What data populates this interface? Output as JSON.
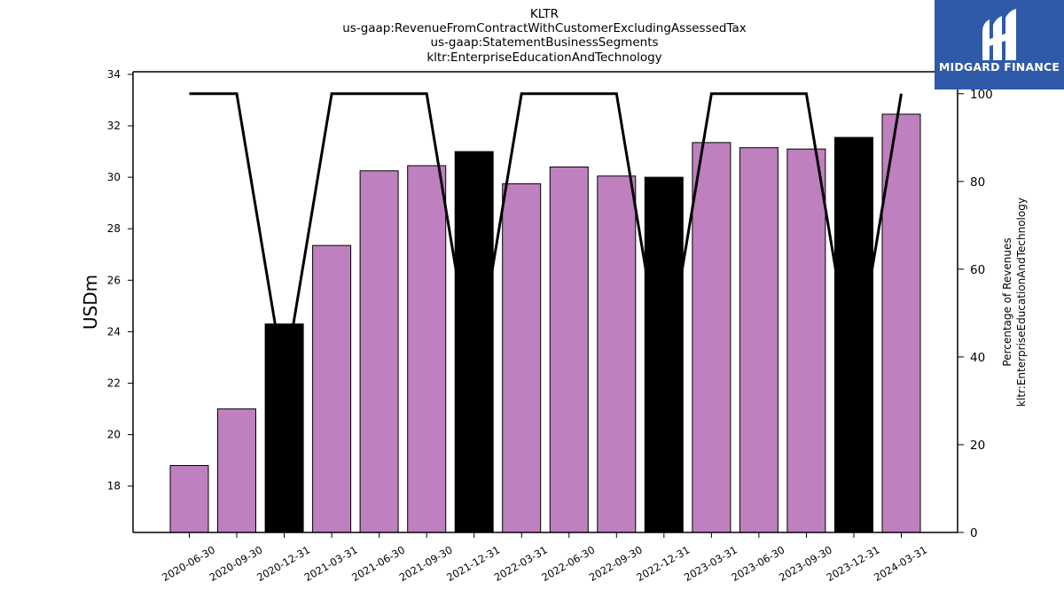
{
  "logo": {
    "text": "MIDGARD FINANCE",
    "background": "#2f5aa8",
    "icon": "midgard-m-icon"
  },
  "chart_data": {
    "type": "bar",
    "title_lines": [
      "KLTR",
      "us-gaap:RevenueFromContractWithCustomerExcludingAssessedTax",
      "us-gaap:StatementBusinessSegments",
      "kltr:EnterpriseEducationAndTechnology"
    ],
    "ylabel": "USDm",
    "y2label_lines": [
      "Percentage of Revenues",
      "kltr:EnterpriseEducationAndTechnology"
    ],
    "ylim": [
      16.2,
      34.1
    ],
    "y_ticks": [
      18,
      20,
      22,
      24,
      26,
      28,
      30,
      32,
      34
    ],
    "y2lim": [
      0,
      105
    ],
    "y2_ticks": [
      0,
      20,
      40,
      60,
      80,
      100
    ],
    "grid": false,
    "colors": {
      "bar": "#bf80bf",
      "bar_q4": "#000000",
      "line": "#000000"
    },
    "categories": [
      "2020-06-30",
      "2020-09-30",
      "2020-12-31",
      "2021-03-31",
      "2021-06-30",
      "2021-09-30",
      "2021-12-31",
      "2022-03-31",
      "2022-06-30",
      "2022-09-30",
      "2022-12-31",
      "2023-03-31",
      "2023-06-30",
      "2023-09-30",
      "2023-12-31",
      "2024-03-31"
    ],
    "values": [
      18.8,
      21.0,
      24.3,
      27.35,
      30.25,
      30.45,
      31.0,
      29.75,
      30.4,
      30.05,
      30.0,
      31.35,
      31.15,
      31.1,
      31.55,
      32.45
    ],
    "bar_colors": [
      "#bf80bf",
      "#bf80bf",
      "#000000",
      "#bf80bf",
      "#bf80bf",
      "#bf80bf",
      "#000000",
      "#bf80bf",
      "#bf80bf",
      "#bf80bf",
      "#000000",
      "#bf80bf",
      "#bf80bf",
      "#bf80bf",
      "#000000",
      "#bf80bf"
    ],
    "percentages": [
      100,
      100,
      35,
      100,
      100,
      100,
      35,
      100,
      100,
      100,
      35,
      100,
      100,
      100,
      35,
      100
    ]
  }
}
